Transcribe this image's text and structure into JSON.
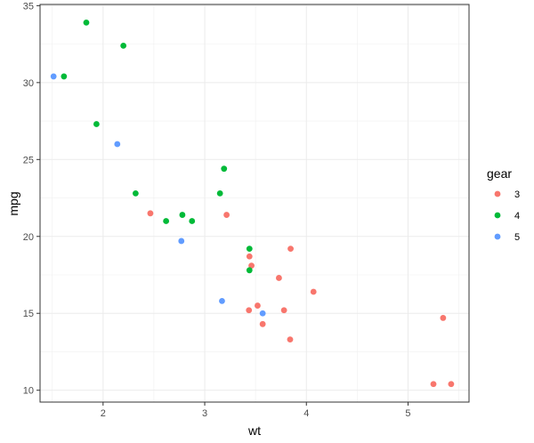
{
  "chart_data": {
    "type": "scatter",
    "title": "",
    "xlabel": "wt",
    "ylabel": "mpg",
    "xlim": [
      1.38,
      5.6
    ],
    "ylim": [
      9.23,
      35.08
    ],
    "x_ticks": [
      2,
      3,
      4,
      5
    ],
    "y_ticks": [
      10,
      15,
      20,
      25,
      30,
      35
    ],
    "x_tick_labels": [
      "2",
      "3",
      "4",
      "5"
    ],
    "y_tick_labels": [
      "10",
      "15",
      "20",
      "25",
      "30",
      "35"
    ],
    "grid": true,
    "legend": {
      "title": "gear",
      "position": "right"
    },
    "series": [
      {
        "name": "3",
        "color": "#F8766D",
        "points": [
          [
            3.215,
            21.4
          ],
          [
            3.44,
            18.7
          ],
          [
            3.46,
            18.1
          ],
          [
            3.57,
            14.3
          ],
          [
            4.07,
            16.4
          ],
          [
            3.73,
            17.3
          ],
          [
            3.78,
            15.2
          ],
          [
            5.25,
            10.4
          ],
          [
            5.424,
            10.4
          ],
          [
            5.345,
            14.7
          ],
          [
            2.465,
            21.5
          ],
          [
            3.52,
            15.5
          ],
          [
            3.435,
            15.2
          ],
          [
            3.84,
            13.3
          ],
          [
            3.845,
            19.2
          ]
        ]
      },
      {
        "name": "4",
        "color": "#00BA38",
        "points": [
          [
            2.62,
            21.0
          ],
          [
            2.875,
            21.0
          ],
          [
            2.32,
            22.8
          ],
          [
            3.19,
            24.4
          ],
          [
            3.15,
            22.8
          ],
          [
            3.44,
            19.2
          ],
          [
            3.44,
            17.8
          ],
          [
            2.2,
            32.4
          ],
          [
            1.615,
            30.4
          ],
          [
            1.835,
            33.9
          ],
          [
            1.935,
            27.3
          ],
          [
            2.78,
            21.4
          ]
        ]
      },
      {
        "name": "5",
        "color": "#619CFF",
        "points": [
          [
            2.14,
            26.0
          ],
          [
            1.513,
            30.4
          ],
          [
            3.17,
            15.8
          ],
          [
            2.77,
            19.7
          ],
          [
            3.57,
            15.0
          ]
        ]
      }
    ]
  }
}
